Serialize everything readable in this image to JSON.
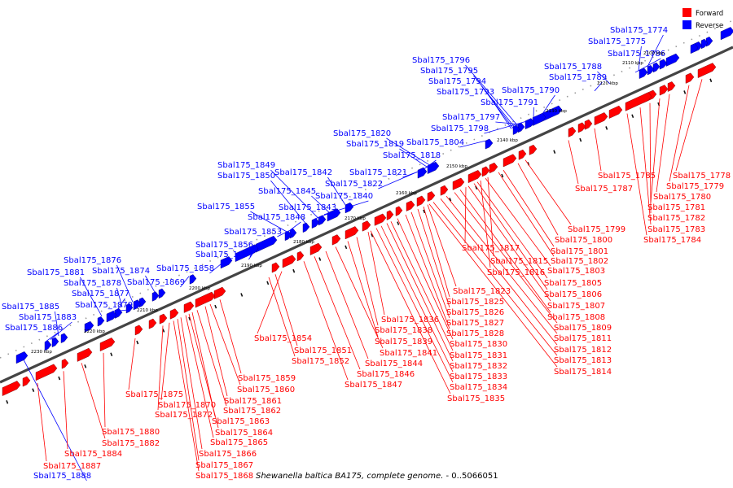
{
  "legend": {
    "forward": {
      "label": "Forward",
      "color": "#ff0000"
    },
    "reverse": {
      "label": "Reverse",
      "color": "#0000ff"
    }
  },
  "caption": {
    "organism": "Shewanella baltica BA175, complete genome.",
    "range": " - 0..5066051"
  },
  "ticks": [
    "2100 kbp",
    "2110 kbp",
    "2120 kbp",
    "2130 kbp",
    "2140 kbp",
    "2150 kbp",
    "2160 kbp",
    "2170 kbp",
    "2180 kbp",
    "2190 kbp",
    "2200 kbp",
    "2210 kbp",
    "2220 kbp",
    "2230 kbp"
  ],
  "reverse_labels": [
    "Sbal175_1774",
    "Sbal175_1775",
    "Sbal175_1786",
    "Sbal175_1788",
    "Sbal175_1789",
    "Sbal175_1790",
    "Sbal175_1791",
    "Sbal175_1796",
    "Sbal175_1795",
    "Sbal175_1794",
    "Sbal175_1793",
    "Sbal175_1797",
    "Sbal175_1798",
    "Sbal175_1804",
    "Sbal175_1820",
    "Sbal175_1819",
    "Sbal175_1818",
    "Sbal175_1821",
    "Sbal175_1822",
    "Sbal175_1849",
    "Sbal175_1850",
    "Sbal175_1842",
    "Sbal175_1845",
    "Sbal175_1840",
    "Sbal175_1855",
    "Sbal175_1843",
    "Sbal175_1848",
    "Sbal175_1853",
    "Sbal175_1856",
    "Sbal175_1857",
    "Sbal175_1858",
    "Sbal175_1876",
    "Sbal175_1874",
    "Sbal175_1881",
    "Sbal175_1878",
    "Sbal175_1869",
    "Sbal175_1877",
    "Sbal175_1879",
    "Sbal175_1885",
    "Sbal175_1883",
    "Sbal175_1886",
    "Sbal175_1888"
  ],
  "forward_labels": [
    "Sbal175_1778",
    "Sbal175_1785",
    "Sbal175_1779",
    "Sbal175_1787",
    "Sbal175_1780",
    "Sbal175_1781",
    "Sbal175_1782",
    "Sbal175_1783",
    "Sbal175_1784",
    "Sbal175_1799",
    "Sbal175_1800",
    "Sbal175_1801",
    "Sbal175_1817",
    "Sbal175_1802",
    "Sbal175_1815",
    "Sbal175_1816",
    "Sbal175_1803",
    "Sbal175_1805",
    "Sbal175_1806",
    "Sbal175_1807",
    "Sbal175_1808",
    "Sbal175_1809",
    "Sbal175_1811",
    "Sbal175_1812",
    "Sbal175_1813",
    "Sbal175_1814",
    "Sbal175_1823",
    "Sbal175_1825",
    "Sbal175_1826",
    "Sbal175_1827",
    "Sbal175_1828",
    "Sbal175_1830",
    "Sbal175_1831",
    "Sbal175_1832",
    "Sbal175_1833",
    "Sbal175_1834",
    "Sbal175_1835",
    "Sbal175_1836",
    "Sbal175_1838",
    "Sbal175_1839",
    "Sbal175_1841",
    "Sbal175_1844",
    "Sbal175_1846",
    "Sbal175_1847",
    "Sbal175_1854",
    "Sbal175_1851",
    "Sbal175_1852",
    "Sbal175_1859",
    "Sbal175_1860",
    "Sbal175_1861",
    "Sbal175_1862",
    "Sbal175_1863",
    "Sbal175_1864",
    "Sbal175_1865",
    "Sbal175_1866",
    "Sbal175_1867",
    "Sbal175_1868",
    "Sbal175_1875",
    "Sbal175_1870",
    "Sbal175_1872",
    "Sbal175_1880",
    "Sbal175_1882",
    "Sbal175_1884",
    "Sbal175_1887"
  ]
}
